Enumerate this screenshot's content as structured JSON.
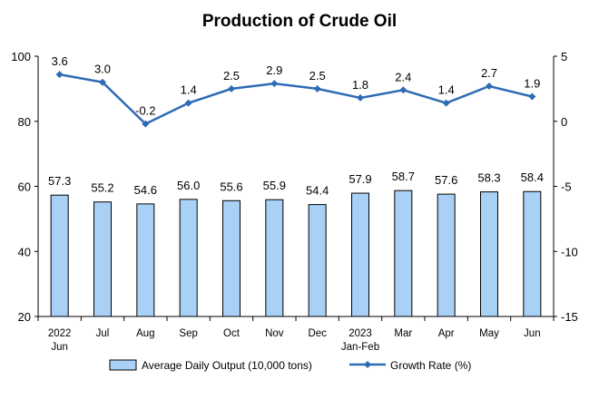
{
  "chart_data": {
    "type": "bar",
    "title": "Production of Crude Oil",
    "categories": [
      [
        "2022",
        "Jun"
      ],
      [
        "Jul"
      ],
      [
        "Aug"
      ],
      [
        "Sep"
      ],
      [
        "Oct"
      ],
      [
        "Nov"
      ],
      [
        "Dec"
      ],
      [
        "2023",
        "Jan-Feb"
      ],
      [
        "Mar"
      ],
      [
        "Apr"
      ],
      [
        "May"
      ],
      [
        "Jun"
      ]
    ],
    "series": [
      {
        "name": "Average Daily Output (10,000 tons)",
        "type": "bar",
        "axis": "left",
        "color": "#a9d1f5",
        "values": [
          57.3,
          55.2,
          54.6,
          56.0,
          55.6,
          55.9,
          54.4,
          57.9,
          58.7,
          57.6,
          58.3,
          58.4
        ],
        "labels": [
          "57.3",
          "55.2",
          "54.6",
          "56.0",
          "55.6",
          "55.9",
          "54.4",
          "57.9",
          "58.7",
          "57.6",
          "58.3",
          "58.4"
        ]
      },
      {
        "name": "Growth Rate (%)",
        "type": "line",
        "axis": "right",
        "color": "#2e6bb5",
        "values": [
          3.6,
          3.0,
          -0.2,
          1.4,
          2.5,
          2.9,
          2.5,
          1.8,
          2.4,
          1.4,
          2.7,
          1.9
        ],
        "labels": [
          "3.6",
          "3.0",
          "-0.2",
          "1.4",
          "2.5",
          "2.9",
          "2.5",
          "1.8",
          "2.4",
          "1.4",
          "2.7",
          "1.9"
        ]
      }
    ],
    "y_left": {
      "ylim": [
        20,
        100
      ],
      "ticks": [
        20,
        40,
        60,
        80,
        100
      ]
    },
    "y_right": {
      "ylim": [
        -15,
        5
      ],
      "ticks": [
        -15,
        -10,
        -5,
        0,
        5
      ]
    },
    "legend": {
      "placement": "bottom"
    },
    "grid": false
  }
}
